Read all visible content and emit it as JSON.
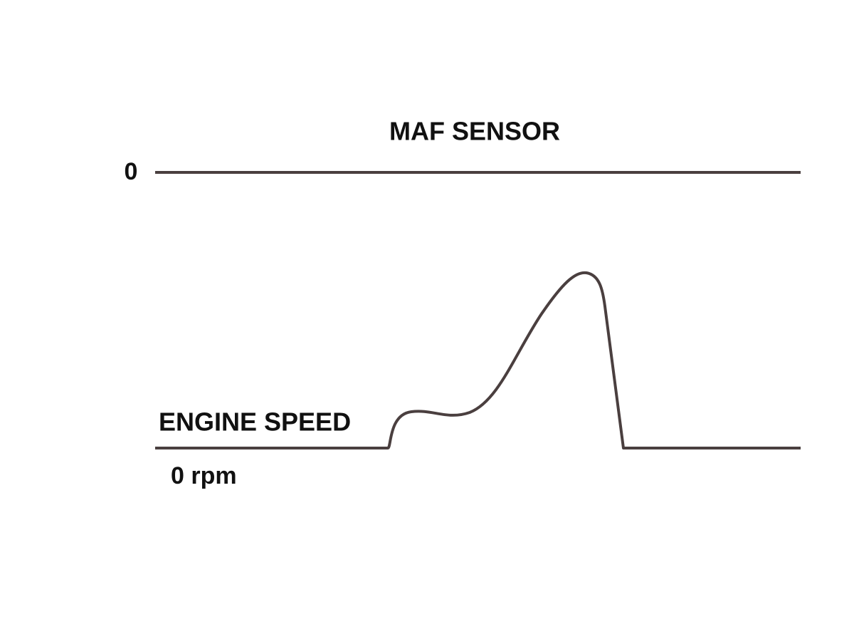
{
  "title": "MAF SENSOR",
  "maf_trace": {
    "zero_label": "0"
  },
  "engine_trace": {
    "label": "ENGINE SPEED",
    "zero_label": "0 rpm"
  }
}
